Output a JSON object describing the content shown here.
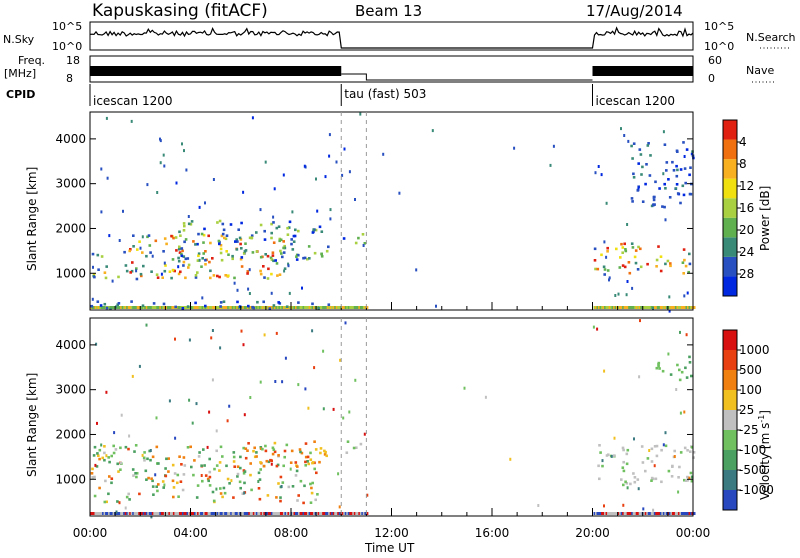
{
  "header": {
    "station": "Kapuskasing (fitACF)",
    "beam": "Beam 13",
    "date": "17/Aug/2014"
  },
  "params": {
    "nsky_label": "N.Sky",
    "nsky_ticks": [
      "10^5",
      "10^0"
    ],
    "nsearch_label": "N.Search",
    "freq_label": "Freq.",
    "freq_unit": "[MHz]",
    "freq_ticks": [
      "18",
      "8"
    ],
    "nave_label": "Nave",
    "nave_ticks": [
      "60",
      "0"
    ],
    "cpid_label": "CPID"
  },
  "cpid_segments": [
    {
      "start_hr": 0,
      "end_hr": 10,
      "label": "icescan 1200"
    },
    {
      "start_hr": 10,
      "end_hr": 20,
      "label": "tau (fast) 503"
    },
    {
      "start_hr": 20,
      "end_hr": 24,
      "label": "icescan 1200"
    }
  ],
  "axes": {
    "xlabel": "Time UT",
    "xticks": [
      "00:00",
      "04:00",
      "08:00",
      "12:00",
      "16:00",
      "20:00",
      "00:00"
    ],
    "ylabel": "Slant Range [km]",
    "yticks": [
      "1000",
      "2000",
      "3000",
      "4000"
    ]
  },
  "power_scale": {
    "label": "Power [dB]",
    "ticks": [
      "4",
      "8",
      "12",
      "16",
      "20",
      "24",
      "28"
    ],
    "colors": [
      "#0028e0",
      "#2850c0",
      "#3a8a78",
      "#60b050",
      "#a8d040",
      "#f0e010",
      "#f8b020",
      "#f07010",
      "#e02010"
    ]
  },
  "velocity_scale": {
    "label": "Velocity [m s",
    "label_sup": "-1",
    "label_end": "]",
    "ticks": [
      "1000",
      "500",
      "100",
      "25",
      "-25",
      "-100",
      "-500",
      "-1000"
    ],
    "colors": [
      "#2848c0",
      "#3a7a80",
      "#4aa060",
      "#70c060",
      "#c0c0c0",
      "#f0c020",
      "#f08010",
      "#e84010",
      "#d81010"
    ]
  },
  "chart_data": {
    "type": "heatmap",
    "x_range_hr": [
      0,
      24
    ],
    "y_range_km": [
      180,
      4600
    ],
    "panels": [
      {
        "name": "Power",
        "regions": [
          {
            "t0": 0.0,
            "t1": 9.8,
            "r0": 200,
            "r1": 400,
            "level": "low"
          },
          {
            "t0": 0.0,
            "t1": 8.0,
            "r0": 900,
            "r1": 1900,
            "level": "high"
          },
          {
            "t0": 3.5,
            "t1": 9.5,
            "r0": 1300,
            "r1": 2200,
            "level": "mid"
          },
          {
            "t0": 10.0,
            "t1": 10.9,
            "r0": 1600,
            "r1": 1900,
            "level": "mid"
          },
          {
            "t0": 20.0,
            "t1": 24.0,
            "r0": 1000,
            "r1": 1700,
            "level": "high"
          },
          {
            "t0": 21.5,
            "t1": 24.0,
            "r0": 2500,
            "r1": 4000,
            "level": "low"
          }
        ]
      },
      {
        "name": "Velocity",
        "regions": [
          {
            "t0": 0.0,
            "t1": 9.0,
            "r0": 500,
            "r1": 1800,
            "level": "mixed"
          },
          {
            "t0": 6.0,
            "t1": 9.5,
            "r0": 1300,
            "r1": 1900,
            "level": "negative"
          },
          {
            "t0": 10.0,
            "t1": 10.9,
            "r0": 1600,
            "r1": 1900,
            "level": "zero"
          },
          {
            "t0": 20.0,
            "t1": 24.0,
            "r0": 900,
            "r1": 1800,
            "level": "zero"
          },
          {
            "t0": 22.5,
            "t1": 24.0,
            "r0": 3200,
            "r1": 3800,
            "level": "positive"
          }
        ]
      }
    ]
  }
}
